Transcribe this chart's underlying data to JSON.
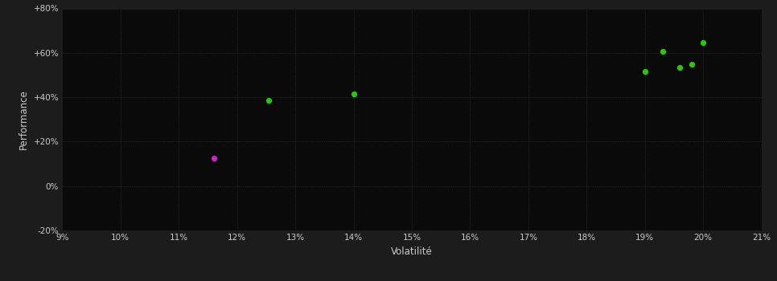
{
  "background_color": "#1c1c1c",
  "plot_bg_color": "#0a0a0a",
  "grid_color": "#3a3a3a",
  "xlabel": "Volatilité",
  "ylabel": "Performance",
  "xlim": [
    0.09,
    0.21
  ],
  "ylim": [
    -0.2,
    0.8
  ],
  "xticks": [
    0.09,
    0.1,
    0.11,
    0.12,
    0.13,
    0.14,
    0.15,
    0.16,
    0.17,
    0.18,
    0.19,
    0.2,
    0.21
  ],
  "yticks": [
    -0.2,
    0.0,
    0.2,
    0.4,
    0.6,
    0.8
  ],
  "ytick_labels": [
    "-20%",
    "0%",
    "+20%",
    "+40%",
    "+60%",
    "+80%"
  ],
  "xtick_labels": [
    "9%",
    "10%",
    "11%",
    "12%",
    "13%",
    "14%",
    "15%",
    "16%",
    "17%",
    "18%",
    "19%",
    "20%",
    "21%"
  ],
  "green_points": [
    [
      0.1255,
      0.385
    ],
    [
      0.14,
      0.415
    ],
    [
      0.19,
      0.515
    ],
    [
      0.193,
      0.605
    ],
    [
      0.196,
      0.535
    ],
    [
      0.198,
      0.55
    ],
    [
      0.2,
      0.645
    ]
  ],
  "magenta_points": [
    [
      0.116,
      0.125
    ]
  ],
  "green_color": "#22cc00",
  "magenta_color": "#cc22cc",
  "point_size": 18,
  "text_color": "#cccccc",
  "tick_fontsize": 7.5,
  "label_fontsize": 8.5,
  "grid_linewidth": 0.5,
  "grid_linestyle": ":"
}
